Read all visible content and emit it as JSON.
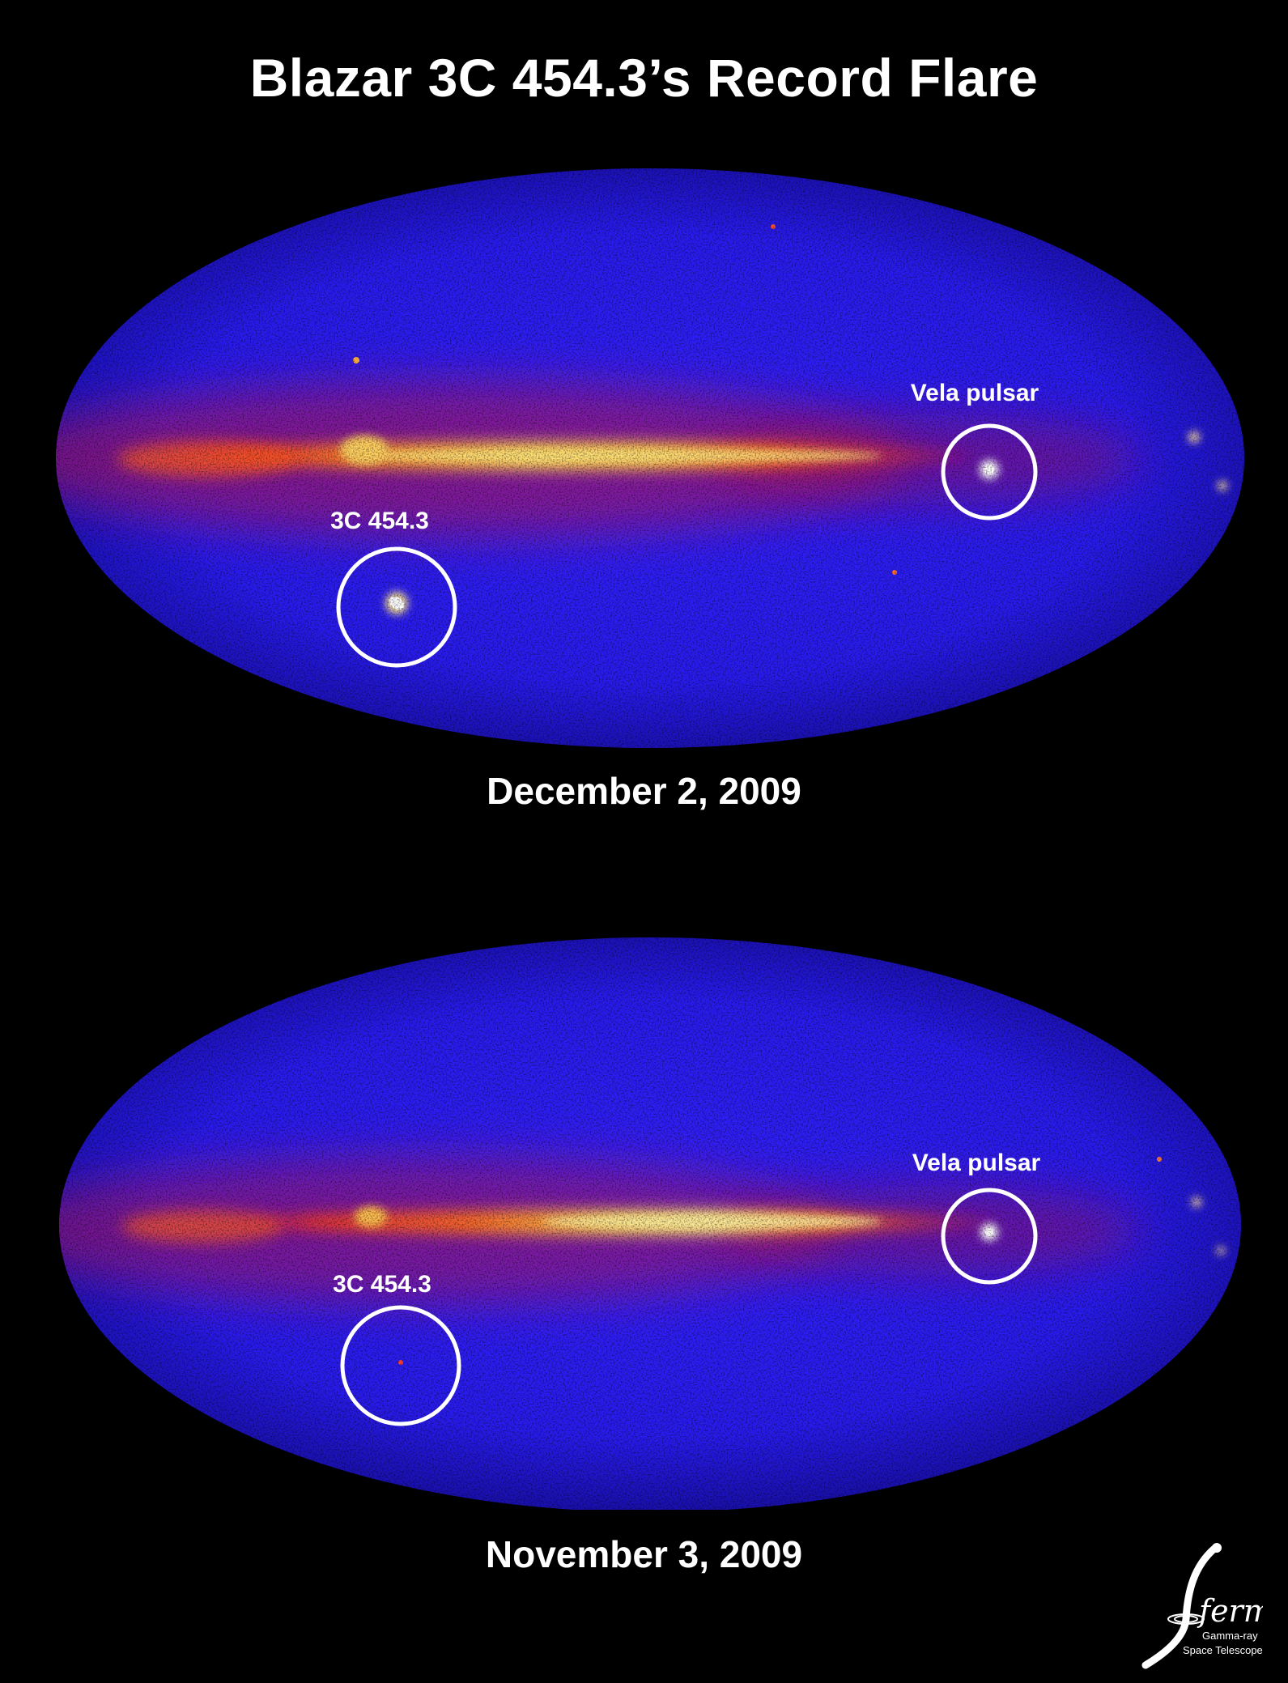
{
  "title": "Blazar 3C 454.3’s Record Flare",
  "panels": [
    {
      "date": "December 2, 2009",
      "labels": {
        "blazar": "3C 454.3",
        "pulsar": "Vela pulsar"
      },
      "blazar_state": "flaring"
    },
    {
      "date": "November 3, 2009",
      "labels": {
        "blazar": "3C 454.3",
        "pulsar": "Vela pulsar"
      },
      "blazar_state": "quiescent"
    }
  ],
  "logo": {
    "name": "fermi",
    "line1": "Gamma-ray",
    "line2": "Space Telescope"
  },
  "colors": {
    "background": "#000000",
    "sky_low": "#2a1cff",
    "sky_mid": "#d0164a",
    "sky_high": "#ffe070",
    "circle": "#ffffff"
  }
}
